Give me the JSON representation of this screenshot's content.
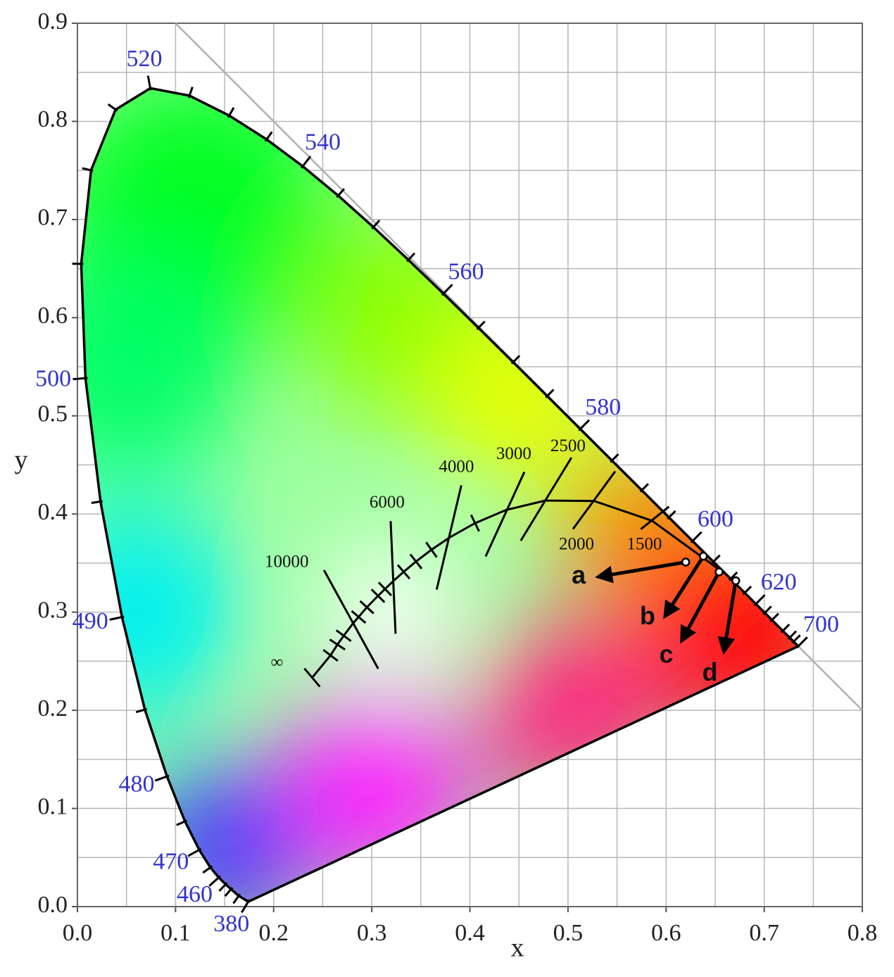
{
  "chart_data": {
    "type": "chromaticity",
    "x_label": "x",
    "y_label": "y",
    "xlim": [
      0,
      0.8
    ],
    "ylim": [
      0,
      0.9
    ],
    "xticks": [
      {
        "value": 0,
        "label": "0.0"
      },
      0.1,
      0.2,
      0.3,
      0.4,
      0.5,
      0.6,
      0.7,
      0.8
    ],
    "yticks": [
      {
        "value": 0,
        "label": "0.0"
      },
      0.1,
      0.2,
      0.3,
      0.4,
      0.5,
      0.6,
      0.7,
      0.8,
      0.9
    ],
    "minor_xticks": [
      0.05,
      0.15,
      0.25,
      0.35,
      0.45,
      0.55,
      0.65,
      0.75
    ],
    "minor_yticks": [
      0.05,
      0.15,
      0.25,
      0.35,
      0.45,
      0.55,
      0.65,
      0.75,
      0.85
    ],
    "grid": true,
    "grid_color": "#b8b8b8",
    "reference_line": {
      "x": [
        0.1,
        0.8
      ],
      "y": [
        0.9,
        0.2
      ],
      "color": "#b0b0b0"
    },
    "spectral_locus": {
      "color": "#000000",
      "label_color": "#3333cc",
      "x": [
        0.1741,
        0.1644,
        0.1566,
        0.151,
        0.144,
        0.1355,
        0.1241,
        0.1096,
        0.0913,
        0.0687,
        0.0454,
        0.0235,
        0.0082,
        0.0039,
        0.0139,
        0.0389,
        0.0743,
        0.1142,
        0.1547,
        0.1929,
        0.2296,
        0.2658,
        0.3016,
        0.3373,
        0.3731,
        0.4087,
        0.4441,
        0.4788,
        0.5125,
        0.5448,
        0.5752,
        0.6029,
        0.627,
        0.6482,
        0.6658,
        0.6801,
        0.6915,
        0.7006,
        0.7079,
        0.719,
        0.726,
        0.73,
        0.7347
      ],
      "y": [
        0.005,
        0.0109,
        0.0177,
        0.0227,
        0.0297,
        0.0399,
        0.0578,
        0.0868,
        0.1327,
        0.2007,
        0.295,
        0.4127,
        0.5384,
        0.6548,
        0.7502,
        0.812,
        0.8338,
        0.8262,
        0.8059,
        0.7816,
        0.7543,
        0.7243,
        0.6923,
        0.6589,
        0.6245,
        0.5896,
        0.5547,
        0.5202,
        0.4866,
        0.4544,
        0.4242,
        0.3965,
        0.3725,
        0.3514,
        0.334,
        0.3197,
        0.3083,
        0.2993,
        0.292,
        0.2809,
        0.274,
        0.27,
        0.2653
      ],
      "wavelengths": [
        380,
        null,
        null,
        null,
        460,
        null,
        470,
        null,
        480,
        null,
        490,
        null,
        500,
        null,
        null,
        null,
        520,
        null,
        null,
        null,
        540,
        null,
        null,
        null,
        560,
        null,
        null,
        null,
        580,
        null,
        null,
        null,
        600,
        null,
        null,
        null,
        620,
        null,
        null,
        null,
        null,
        null,
        700
      ]
    },
    "planckian_locus": {
      "color": "#000000",
      "x": [
        0.2399,
        0.258,
        0.265,
        0.2714,
        0.2807,
        0.2866,
        0.295,
        0.3064,
        0.3135,
        0.3221,
        0.3325,
        0.3451,
        0.3608,
        0.3805,
        0.4053,
        0.4369,
        0.477,
        0.5266,
        0.5857,
        0.6528
      ],
      "y": [
        0.2341,
        0.256,
        0.267,
        0.276,
        0.2883,
        0.2951,
        0.305,
        0.3166,
        0.3236,
        0.3318,
        0.3411,
        0.3516,
        0.3636,
        0.3768,
        0.3907,
        0.4041,
        0.4137,
        0.4133,
        0.3931,
        0.3444
      ],
      "labels": [
        "∞",
        null,
        null,
        null,
        "10000",
        null,
        null,
        null,
        null,
        "6000",
        null,
        null,
        null,
        "4000",
        null,
        "3000",
        "2500",
        "2000",
        "1500",
        null
      ]
    },
    "markers": [
      {
        "label": "a",
        "x": 0.62,
        "y": 0.351,
        "x2": 0.531,
        "y2": 0.336
      },
      {
        "label": "b",
        "x": 0.638,
        "y": 0.357,
        "x2": 0.599,
        "y2": 0.296
      },
      {
        "label": "c",
        "x": 0.654,
        "y": 0.341,
        "x2": 0.616,
        "y2": 0.271
      },
      {
        "label": "d",
        "x": 0.671,
        "y": 0.332,
        "x2": 0.659,
        "y2": 0.26
      }
    ]
  }
}
